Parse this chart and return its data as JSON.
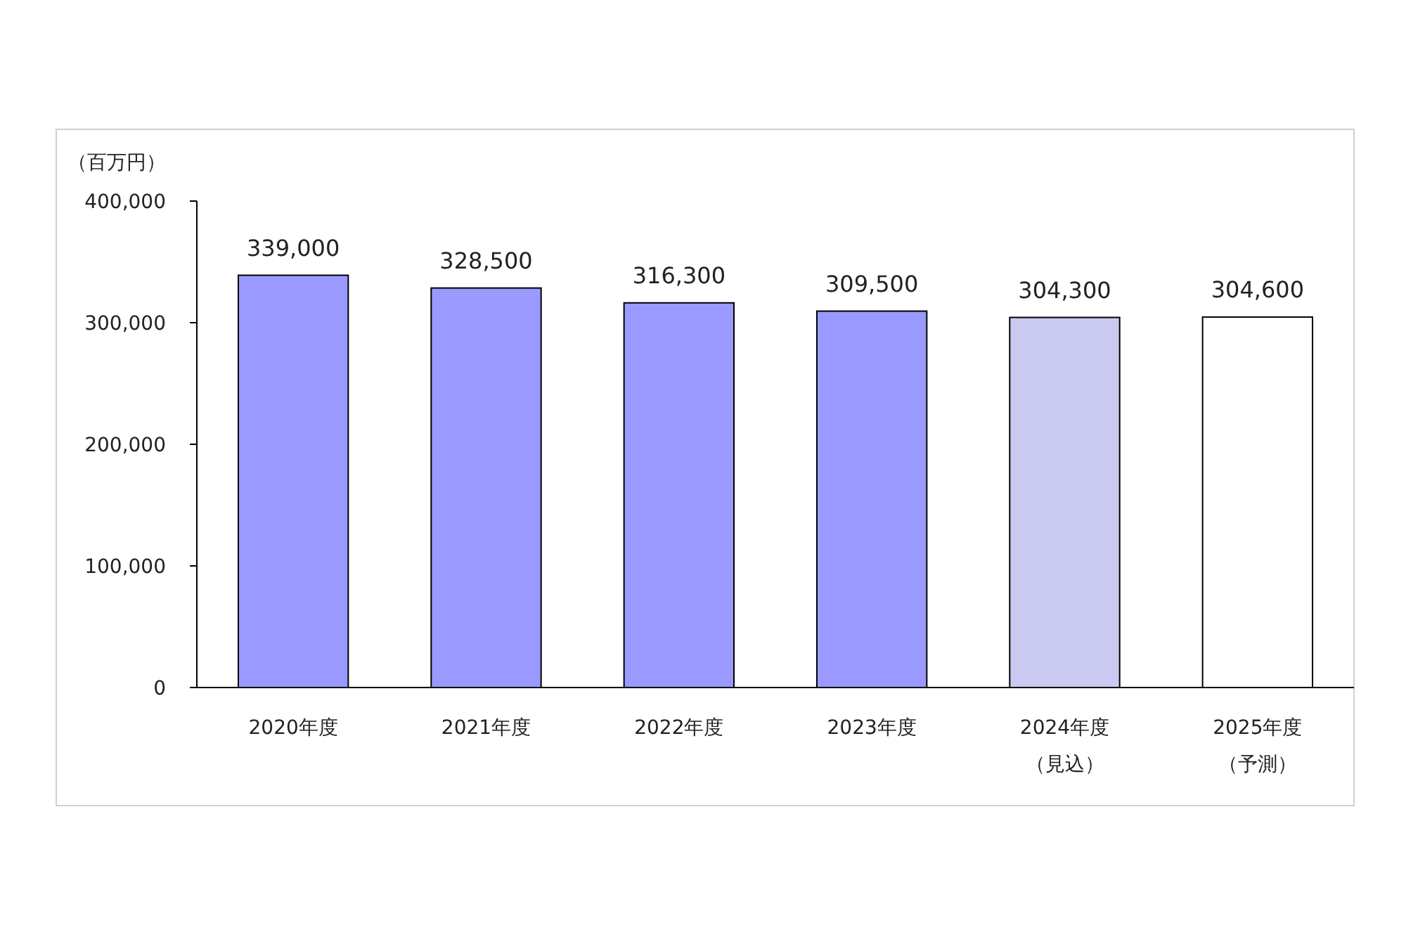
{
  "chart_data": {
    "type": "bar",
    "ylabel": "（百万円）",
    "categories": [
      "2020年度",
      "2021年度",
      "2022年度",
      "2023年度",
      "2024年度（見込）",
      "2025年度（予測）"
    ],
    "values": [
      339000,
      328500,
      316300,
      309500,
      304300,
      304600
    ],
    "value_labels": [
      "339,000",
      "328,500",
      "316,300",
      "309,500",
      "304,300",
      "304,600"
    ],
    "colors": [
      "#9999ff",
      "#9999ff",
      "#9999ff",
      "#9999ff",
      "#c9c9f2",
      "#ffffff"
    ],
    "ylim": [
      0,
      400000
    ],
    "yticks": [
      {
        "value": 0,
        "label": "0"
      },
      {
        "value": 100000,
        "label": "100,000"
      },
      {
        "value": 200000,
        "label": "200,000"
      },
      {
        "value": 300000,
        "label": "300,000"
      },
      {
        "value": 400000,
        "label": "400,000"
      }
    ],
    "grid": false
  }
}
